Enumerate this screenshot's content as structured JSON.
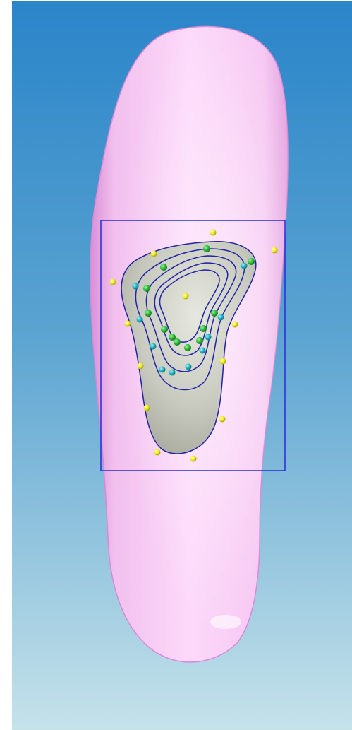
{
  "viewport": {
    "background_top_color": "#2a85c9",
    "background_bottom_color": "#c5e2ea"
  },
  "model": {
    "insole_color": "#fad0f8",
    "pad_color": "#c9cbc0",
    "contour_color": "#2323a6",
    "selection_box_color": "#2b2bd6"
  },
  "control_points": {
    "yellow_color": "#f2ee23",
    "green_color": "#2fbf3c",
    "cyan_color": "#22b7c7"
  }
}
